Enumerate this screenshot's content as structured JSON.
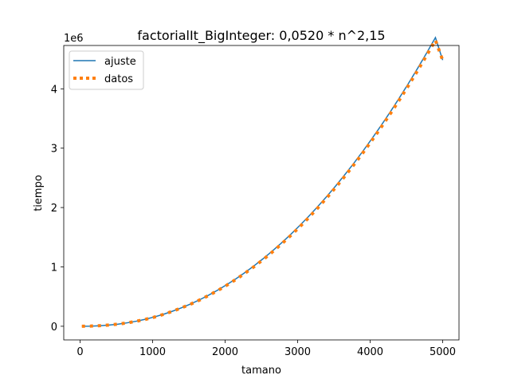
{
  "chart_data": {
    "type": "line",
    "title": "factorialIt_BigInteger:    0,0520 * n^2,15",
    "xlabel": "tamano",
    "ylabel": "tiempo",
    "offset_text": "1e6",
    "xlim": [
      -225,
      5225
    ],
    "ylim": [
      -230000,
      4730000
    ],
    "x_ticks": [
      0,
      1000,
      2000,
      3000,
      4000,
      5000
    ],
    "x_tick_labels": [
      "0",
      "1000",
      "2000",
      "3000",
      "4000",
      "5000"
    ],
    "y_ticks": [
      0,
      1000000,
      2000000,
      3000000,
      4000000
    ],
    "y_tick_labels": [
      "0",
      "1",
      "2",
      "3",
      "4"
    ],
    "grid": false,
    "legend_position": "top-left",
    "fit_model": {
      "coefficient": 0.052,
      "exponent": 2.15
    },
    "series": [
      {
        "name": "ajuste",
        "style": "solid",
        "color": "#1f77b4",
        "x": [
          25,
          150,
          275,
          400,
          525,
          650,
          775,
          900,
          1025,
          1150,
          1275,
          1400,
          1525,
          1650,
          1775,
          1900,
          2025,
          2150,
          2275,
          2400,
          2525,
          2650,
          2775,
          2900,
          3025,
          3150,
          3275,
          3400,
          3525,
          3650,
          3775,
          3900,
          4025,
          4150,
          4275,
          4400,
          4525,
          4650,
          4775,
          4900,
          5000
        ],
        "y": [
          50,
          2500,
          9000,
          20000,
          36000,
          58000,
          85000,
          118000,
          157000,
          202000,
          254000,
          312000,
          376000,
          447000,
          525000,
          610000,
          702000,
          800000,
          906000,
          1019000,
          1139000,
          1266000,
          1401000,
          1542000,
          1692000,
          1848000,
          2013000,
          2185000,
          2364000,
          2552000,
          2747000,
          2950000,
          3161000,
          3380000,
          3607000,
          3842000,
          4085000,
          4336000,
          4596000,
          4863000,
          4484000
        ]
      },
      {
        "name": "datos",
        "style": "dotted",
        "color": "#ff7f0e",
        "x": [
          25,
          150,
          275,
          400,
          525,
          650,
          775,
          900,
          1025,
          1150,
          1275,
          1400,
          1525,
          1650,
          1775,
          1900,
          2025,
          2150,
          2275,
          2400,
          2525,
          2650,
          2775,
          2900,
          3025,
          3150,
          3275,
          3400,
          3525,
          3650,
          3775,
          3900,
          4025,
          4150,
          4275,
          4400,
          4525,
          4650,
          4775,
          4900,
          5000
        ],
        "y": [
          0,
          3000,
          10000,
          21000,
          36000,
          57000,
          84000,
          116000,
          154000,
          200000,
          252000,
          310000,
          373000,
          443000,
          520000,
          603000,
          693000,
          790000,
          894000,
          1005000,
          1124000,
          1250000,
          1383000,
          1523000,
          1671000,
          1826000,
          1990000,
          2161000,
          2340000,
          2526000,
          2720000,
          2922000,
          3132000,
          3350000,
          3575000,
          3808000,
          4049000,
          4298000,
          4555000,
          4820000,
          4480000
        ]
      }
    ]
  }
}
